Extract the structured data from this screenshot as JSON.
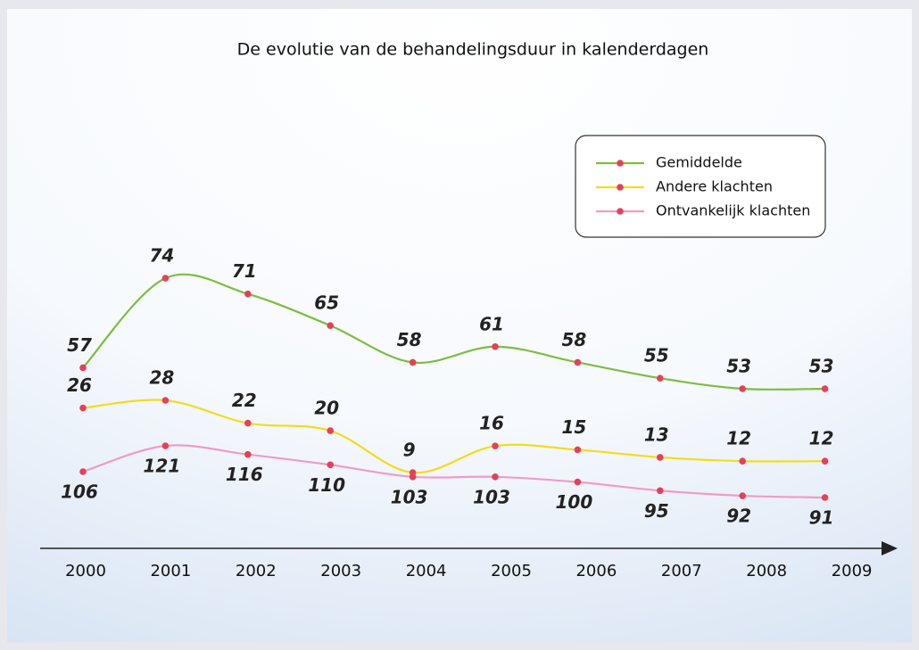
{
  "chart_data": {
    "type": "line",
    "title": "De evolutie van de behandelingsduur in kalenderdagen",
    "categories": [
      "2000",
      "2001",
      "2002",
      "2003",
      "2004",
      "2005",
      "2006",
      "2007",
      "2008",
      "2009"
    ],
    "marker_color": "#e5405a",
    "series": [
      {
        "name": "Gemiddelde",
        "color": "#7dbd3f",
        "values": [
          57,
          74,
          71,
          65,
          58,
          61,
          58,
          55,
          53,
          53
        ]
      },
      {
        "name": "Andere klachten",
        "color": "#f2dc1e",
        "values": [
          26,
          28,
          22,
          20,
          9,
          16,
          15,
          13,
          12,
          12
        ]
      },
      {
        "name": "Ontvankelijk klachten",
        "color": "#ef9cc6",
        "values": [
          106,
          121,
          116,
          110,
          103,
          103,
          100,
          95,
          92,
          91
        ]
      }
    ]
  }
}
